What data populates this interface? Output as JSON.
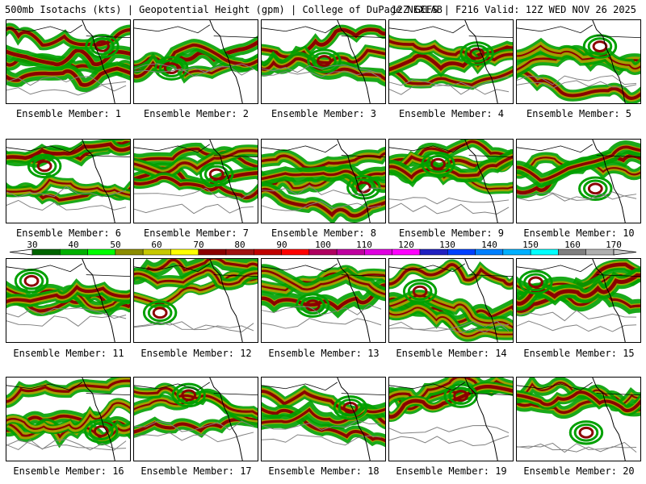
{
  "header": {
    "left": "500mb Isotachs (kts) | Geopotential Height (gpm) | College of DuPage NEXLAB",
    "right": "12Z GEFS | F216 Valid: 12Z WED NOV 26 2025"
  },
  "member_prefix": "Ensemble Member:",
  "members": [
    "1",
    "2",
    "3",
    "4",
    "5",
    "6",
    "7",
    "8",
    "9",
    "10",
    "11",
    "12",
    "13",
    "14",
    "15",
    "16",
    "17",
    "18",
    "19",
    "20"
  ],
  "legend": {
    "ticks": [
      "30",
      "40",
      "50",
      "60",
      "70",
      "80",
      "90",
      "100",
      "110",
      "120",
      "130",
      "140",
      "150",
      "160",
      "170"
    ],
    "colors": [
      "#006400",
      "#00b000",
      "#00ff00",
      "#8c8c00",
      "#c8c800",
      "#ffff00",
      "#8b0000",
      "#a01010",
      "#c00000",
      "#ff0000",
      "#b00060",
      "#c000a0",
      "#e000e0",
      "#ff00ff",
      "#2020c0",
      "#0040ff",
      "#0080ff",
      "#00b0ff",
      "#00ffff",
      "#808080",
      "#b0b0b0"
    ]
  },
  "map_colors": {
    "outline": "#000000",
    "height_contour": "#808080",
    "jet_core": "#8b0000",
    "jet_mid": "#a0a000",
    "jet_outer": "#00a000"
  }
}
